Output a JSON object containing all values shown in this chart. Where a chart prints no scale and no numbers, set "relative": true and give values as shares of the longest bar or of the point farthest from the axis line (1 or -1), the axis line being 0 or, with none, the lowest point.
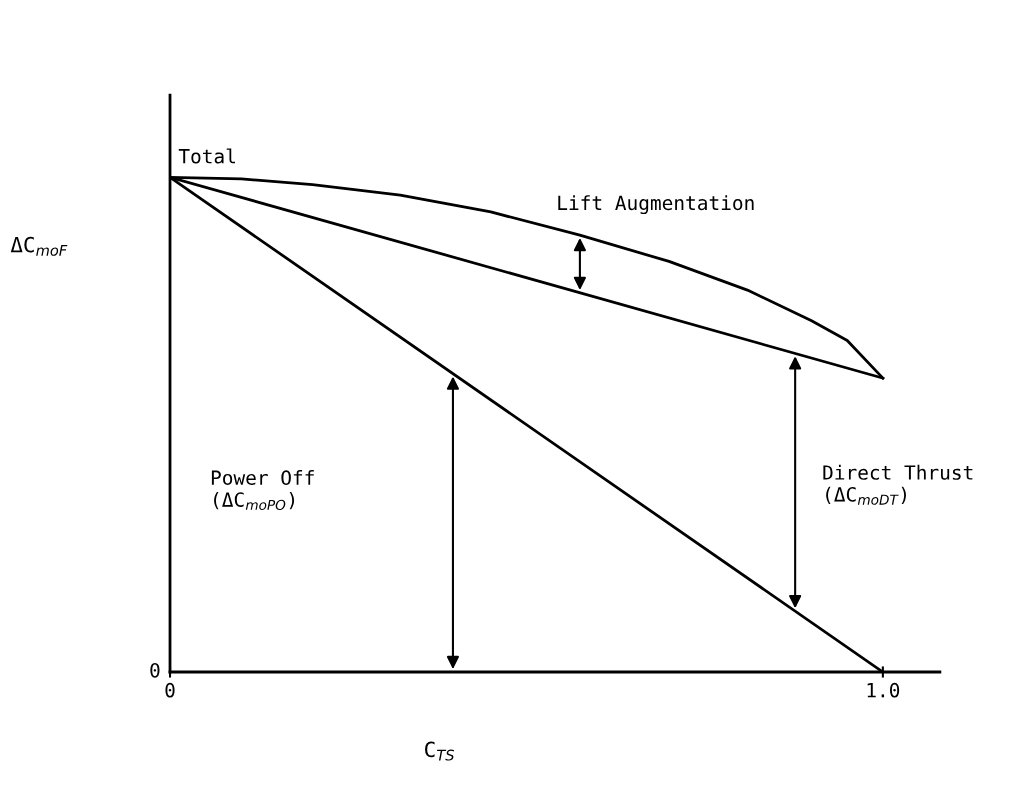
{
  "chart_data": {
    "type": "line",
    "relative": true,
    "xlabel": "C$_{TS}$",
    "ylabel": "ΔC$_{moF}$",
    "xlim": [
      0,
      1.08
    ],
    "xticks": [
      0,
      {
        "value": 1.0,
        "label": "1.0"
      }
    ],
    "series": [
      {
        "color": "#000000",
        "x": [
          0,
          0.1,
          0.2,
          0.323,
          0.45,
          0.575,
          0.7,
          0.81,
          0.9,
          0.95,
          1.0
        ],
        "values": [
          1,
          0.997,
          0.985,
          0.964,
          0.93,
          0.883,
          0.83,
          0.772,
          0.71,
          0.67,
          0.594
        ]
      },
      {
        "color": "#000000",
        "x": [
          0,
          1.0
        ],
        "values": [
          1,
          0.594
        ]
      },
      {
        "color": "#000000",
        "x": [
          0,
          1.0
        ],
        "values": [
          1,
          0
        ]
      }
    ],
    "annotations": [
      {
        "text": "Total",
        "x": 0,
        "y": 1
      },
      {
        "text": "Lift Augmentation",
        "x": 0.575,
        "y": 0.883
      },
      "Power Off\n(ΔC$_{moPO}$)",
      "Direct Thrust\n(ΔC$_{moDT}$)",
      "0"
    ],
    "grid": false,
    "legend": false,
    "marker": "none",
    "line_style": "solid"
  }
}
